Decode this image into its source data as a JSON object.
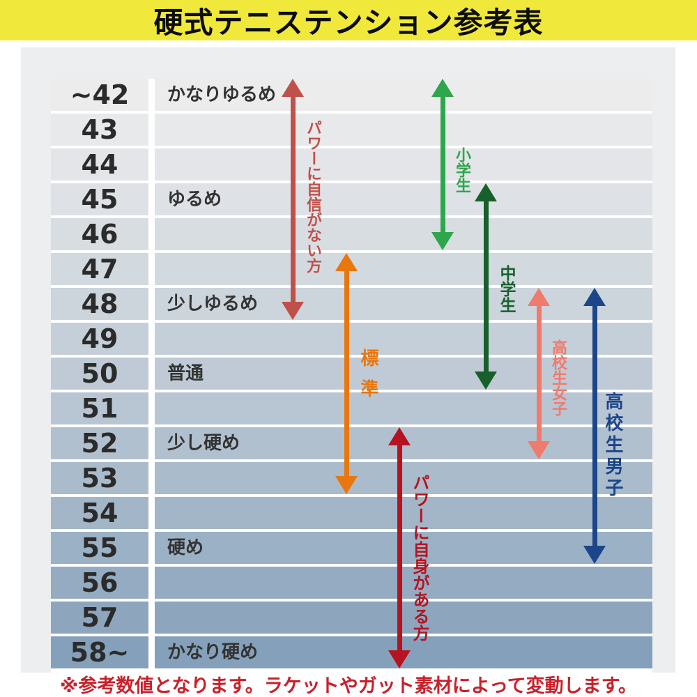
{
  "title": "硬式テニステンション参考表",
  "footnote": "※参考数値となります。ラケットやガット素材によって変動します。",
  "colors": {
    "title_bg": "#f0e93c",
    "title_text": "#0d0d0d",
    "panel_bg": "#edeeef",
    "row_gradient_start": "#ececec",
    "row_gradient_end": "#85a0ba",
    "number_text": "#2b2b2b",
    "label_text": "#333333",
    "footnote_text": "#c9202a"
  },
  "chart_data": {
    "type": "table",
    "title": "硬式テニステンション参考表",
    "rows": [
      {
        "tension": "~42",
        "label": "かなりゆるめ"
      },
      {
        "tension": "43",
        "label": ""
      },
      {
        "tension": "44",
        "label": ""
      },
      {
        "tension": "45",
        "label": "ゆるめ"
      },
      {
        "tension": "46",
        "label": ""
      },
      {
        "tension": "47",
        "label": ""
      },
      {
        "tension": "48",
        "label": "少しゆるめ"
      },
      {
        "tension": "49",
        "label": ""
      },
      {
        "tension": "50",
        "label": "普通"
      },
      {
        "tension": "51",
        "label": ""
      },
      {
        "tension": "52",
        "label": "少し硬め"
      },
      {
        "tension": "53",
        "label": ""
      },
      {
        "tension": "54",
        "label": ""
      },
      {
        "tension": "55",
        "label": "硬め"
      },
      {
        "tension": "56",
        "label": ""
      },
      {
        "tension": "57",
        "label": ""
      },
      {
        "tension": "58~",
        "label": "かなり硬め"
      }
    ],
    "arrows": [
      {
        "label": "パワーに自信がない方",
        "from": "~42",
        "to": "48",
        "color": "#c0504a"
      },
      {
        "label": "小学生",
        "from": "~42",
        "to": "46",
        "color": "#2ea64b"
      },
      {
        "label": "標準",
        "from": "47",
        "to": "53",
        "color": "#e8770e"
      },
      {
        "label": "中学生",
        "from": "45",
        "to": "50",
        "color": "#17602b"
      },
      {
        "label": "高校生女子",
        "from": "48",
        "to": "52",
        "color": "#ef7b6d"
      },
      {
        "label": "高校生男子",
        "from": "48",
        "to": "55",
        "color": "#1c4689"
      },
      {
        "label": "パワーに自身がある方",
        "from": "52",
        "to": "58~",
        "color": "#b5131f"
      }
    ],
    "footnote": "※参考数値となります。ラケットやガット素材によって変動します。"
  }
}
